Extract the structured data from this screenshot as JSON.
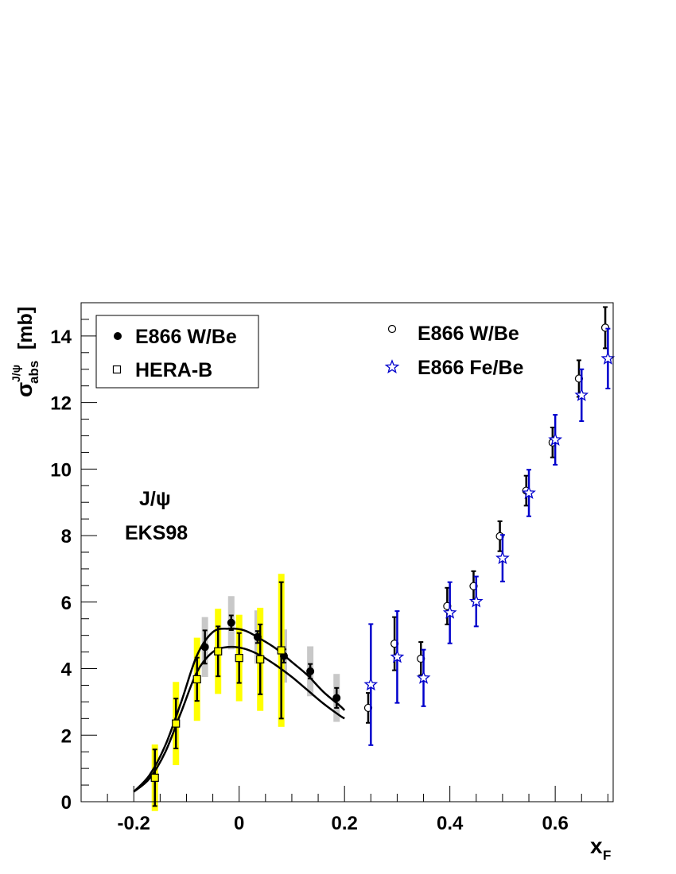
{
  "chart_data": {
    "type": "scatter",
    "xlabel_main": "x",
    "xlabel_sub": "F",
    "ylabel_sigma": "σ",
    "ylabel_sub": "abs",
    "ylabel_sup": "J/ψ",
    "ylabel_unit": "[mb]",
    "xlim": [
      -0.3,
      0.71
    ],
    "ylim": [
      0,
      15
    ],
    "x_ticks": [
      -0.2,
      0,
      0.2,
      0.4,
      0.6
    ],
    "x_tick_labels": [
      "-0.2",
      "0",
      "0.2",
      "0.4",
      "0.6"
    ],
    "y_ticks": [
      0,
      2,
      4,
      6,
      8,
      10,
      12,
      14
    ],
    "y_tick_labels": [
      "0",
      "2",
      "4",
      "6",
      "8",
      "10",
      "12",
      "14"
    ],
    "grid": false,
    "annotations": [
      "J/ψ",
      "EKS98"
    ],
    "legends": [
      {
        "placement": "top-left",
        "boxed": true,
        "entries": [
          {
            "marker": "filled-circle",
            "label": "E866 W/Be"
          },
          {
            "marker": "open-square",
            "label": "HERA-B"
          }
        ]
      },
      {
        "placement": "top-right",
        "boxed": false,
        "entries": [
          {
            "marker": "open-circle",
            "label": "E866 W/Be"
          },
          {
            "marker": "open-star",
            "label": "E866 Fe/Be"
          }
        ]
      }
    ],
    "series": [
      {
        "marker": "filled-circle",
        "color": "#000000",
        "syst_color": "#c8c8c8",
        "points": [
          {
            "x": -0.065,
            "y": 4.65,
            "err": 0.5,
            "syst": 0.9
          },
          {
            "x": -0.015,
            "y": 5.38,
            "err": 0.22,
            "syst": 0.8
          },
          {
            "x": 0.035,
            "y": 4.95,
            "err": 0.18,
            "syst": 0.8
          },
          {
            "x": 0.085,
            "y": 4.38,
            "err": 0.2,
            "syst": 0.8
          },
          {
            "x": 0.135,
            "y": 3.92,
            "err": 0.22,
            "syst": 0.75
          },
          {
            "x": 0.185,
            "y": 3.12,
            "err": 0.3,
            "syst": 0.72
          }
        ]
      },
      {
        "marker": "open-square",
        "color": "#000000",
        "fill": "#ffff00",
        "syst_color": "#ffff00",
        "points": [
          {
            "x": -0.16,
            "y": 0.72,
            "err": 0.85,
            "syst": 1.0
          },
          {
            "x": -0.12,
            "y": 2.35,
            "err": 0.75,
            "syst": 1.25
          },
          {
            "x": -0.08,
            "y": 3.68,
            "err": 0.65,
            "syst": 1.25
          },
          {
            "x": -0.04,
            "y": 4.52,
            "err": 0.75,
            "syst": 1.28
          },
          {
            "x": 0.0,
            "y": 4.32,
            "err": 0.75,
            "syst": 1.3
          },
          {
            "x": 0.04,
            "y": 4.28,
            "err": 1.05,
            "syst": 1.55
          },
          {
            "x": 0.08,
            "y": 4.55,
            "err": 2.05,
            "syst": 2.3
          }
        ]
      },
      {
        "marker": "open-circle",
        "color": "#000000",
        "points": [
          {
            "x": 0.245,
            "y": 2.82,
            "err": 0.45
          },
          {
            "x": 0.295,
            "y": 4.75,
            "err": 0.8
          },
          {
            "x": 0.345,
            "y": 4.3,
            "err": 0.5
          },
          {
            "x": 0.395,
            "y": 5.88,
            "err": 0.55
          },
          {
            "x": 0.445,
            "y": 6.48,
            "err": 0.45
          },
          {
            "x": 0.495,
            "y": 7.98,
            "err": 0.45
          },
          {
            "x": 0.545,
            "y": 9.35,
            "err": 0.45
          },
          {
            "x": 0.595,
            "y": 10.8,
            "err": 0.45
          },
          {
            "x": 0.645,
            "y": 12.72,
            "err": 0.55
          },
          {
            "x": 0.695,
            "y": 14.25,
            "err": 0.62
          }
        ]
      },
      {
        "marker": "open-star",
        "color": "#0000cc",
        "points": [
          {
            "x": 0.25,
            "y": 3.52,
            "err": 1.82
          },
          {
            "x": 0.3,
            "y": 4.35,
            "err": 1.38
          },
          {
            "x": 0.35,
            "y": 3.72,
            "err": 0.85
          },
          {
            "x": 0.4,
            "y": 5.68,
            "err": 0.92
          },
          {
            "x": 0.45,
            "y": 6.02,
            "err": 0.75
          },
          {
            "x": 0.5,
            "y": 7.32,
            "err": 0.7
          },
          {
            "x": 0.55,
            "y": 9.28,
            "err": 0.7
          },
          {
            "x": 0.6,
            "y": 10.88,
            "err": 0.75
          },
          {
            "x": 0.65,
            "y": 12.22,
            "err": 0.78
          },
          {
            "x": 0.7,
            "y": 13.32,
            "err": 0.9
          }
        ]
      }
    ],
    "curves": [
      {
        "color": "#000000",
        "x": [
          -0.2,
          -0.17,
          -0.14,
          -0.11,
          -0.08,
          -0.05,
          -0.02,
          0.01,
          0.04,
          0.07,
          0.1,
          0.13,
          0.16,
          0.19,
          0.2
        ],
        "y": [
          0.3,
          0.8,
          1.7,
          3.0,
          4.4,
          5.1,
          5.2,
          5.15,
          4.9,
          4.6,
          4.2,
          3.8,
          3.3,
          2.9,
          2.75
        ]
      },
      {
        "color": "#000000",
        "x": [
          -0.2,
          -0.17,
          -0.14,
          -0.11,
          -0.08,
          -0.05,
          -0.02,
          0.01,
          0.04,
          0.07,
          0.1,
          0.13,
          0.16,
          0.19,
          0.2
        ],
        "y": [
          0.3,
          0.7,
          1.5,
          2.7,
          3.9,
          4.5,
          4.65,
          4.6,
          4.4,
          4.1,
          3.75,
          3.35,
          2.95,
          2.6,
          2.5
        ]
      }
    ]
  }
}
